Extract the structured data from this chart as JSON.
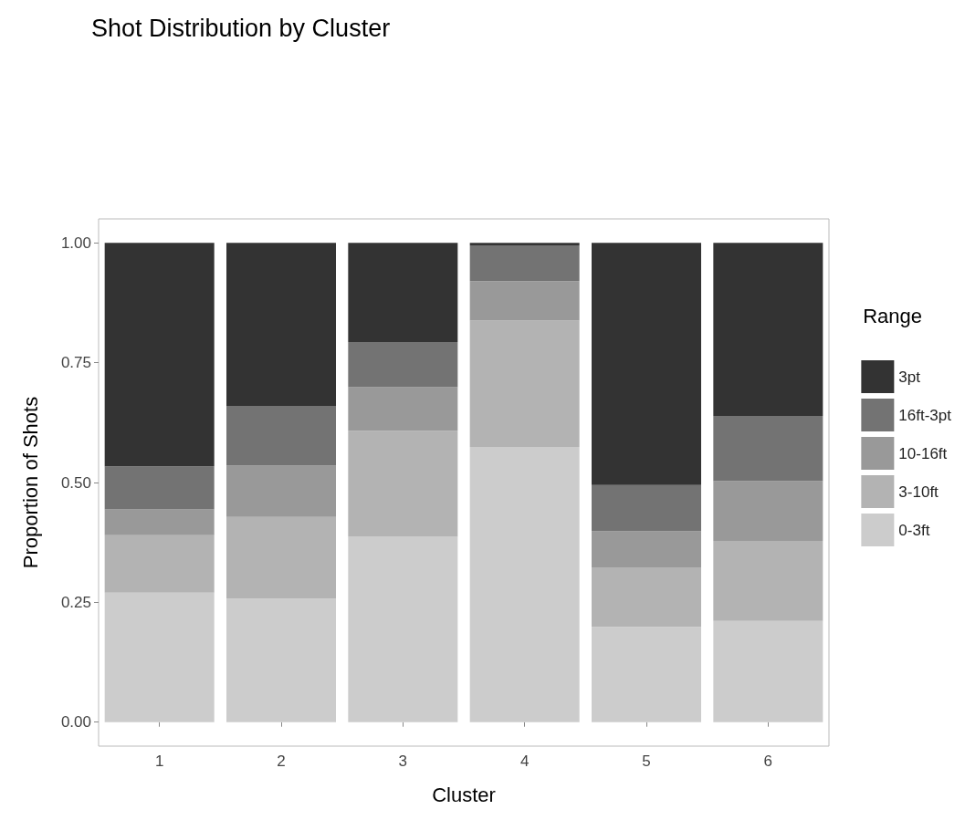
{
  "chart_data": {
    "type": "bar",
    "title": "Shot Distribution by Cluster",
    "xlabel": "Cluster",
    "ylabel": "Proportion of Shots",
    "legend_title": "Range",
    "categories": [
      "1",
      "2",
      "3",
      "4",
      "5",
      "6"
    ],
    "stacked": true,
    "legend": "right",
    "grid": false,
    "ylim": [
      -0.05,
      1.05
    ],
    "yticks": [
      {
        "value": 0,
        "label": "0.00"
      },
      {
        "value": 0.25,
        "label": "0.25"
      },
      {
        "value": 0.5,
        "label": "0.50"
      },
      {
        "value": 0.75,
        "label": "0.75"
      },
      {
        "value": 1,
        "label": "1.00"
      }
    ],
    "series": [
      {
        "name": "0-3ft",
        "color": "#cccccc",
        "values": [
          0.27,
          0.258,
          0.387,
          0.574,
          0.199,
          0.211
        ]
      },
      {
        "name": "3-10ft",
        "color": "#b3b3b3",
        "values": [
          0.12,
          0.17,
          0.221,
          0.264,
          0.124,
          0.167
        ]
      },
      {
        "name": "10-16ft",
        "color": "#999999",
        "values": [
          0.054,
          0.107,
          0.091,
          0.082,
          0.075,
          0.125
        ]
      },
      {
        "name": "16ft-3pt",
        "color": "#737373",
        "values": [
          0.09,
          0.125,
          0.094,
          0.075,
          0.097,
          0.136
        ]
      },
      {
        "name": "3pt",
        "color": "#333333",
        "values": [
          0.466,
          0.34,
          0.207,
          0.005,
          0.505,
          0.361
        ]
      }
    ]
  }
}
